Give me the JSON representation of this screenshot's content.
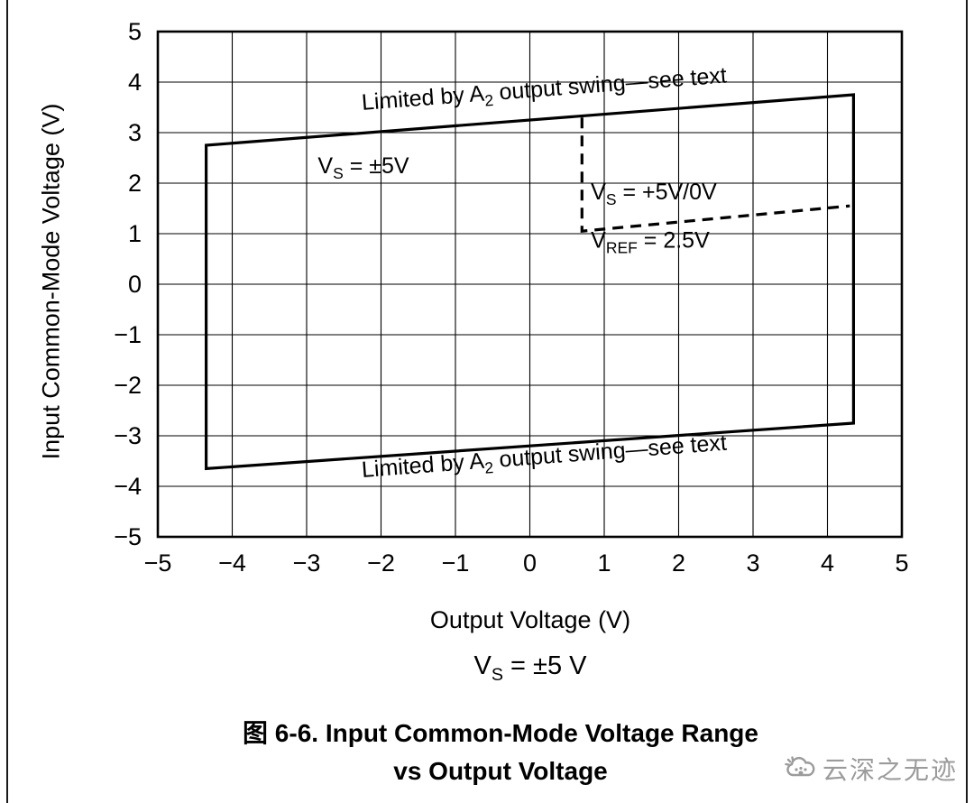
{
  "figure": {
    "caption_line1": "图 6-6. Input Common-Mode Voltage Range",
    "caption_line2": "vs Output Voltage",
    "condition": "V_{S} = ±5 V",
    "watermark": "云深之无迹"
  },
  "chart_data": {
    "type": "line",
    "title": "",
    "xlabel": "Output Voltage (V)",
    "ylabel": "Input Common-Mode Voltage (V)",
    "xlim": [
      -5,
      5
    ],
    "ylim": [
      -5,
      5
    ],
    "xticks": [
      -5,
      -4,
      -3,
      -2,
      -1,
      0,
      1,
      2,
      3,
      4,
      5
    ],
    "yticks": [
      -5,
      -4,
      -3,
      -2,
      -1,
      0,
      1,
      2,
      3,
      4,
      5
    ],
    "grid": true,
    "legend": "none",
    "series": [
      {
        "name": "input-cm-range-vs-pm5v",
        "line": "solid",
        "closed": true,
        "stroke_width": 3.2,
        "points": [
          [
            -4.35,
            2.75
          ],
          [
            4.35,
            3.75
          ],
          [
            4.35,
            -2.75
          ],
          [
            -4.35,
            -3.65
          ]
        ]
      },
      {
        "name": "boundary-vs-plus5v-0v-vref-2p5v",
        "line": "dashed",
        "closed": false,
        "stroke_width": 3.2,
        "points": [
          [
            0.7,
            3.3
          ],
          [
            0.7,
            1.05
          ],
          [
            4.3,
            1.55
          ]
        ]
      }
    ],
    "annotations": [
      {
        "text": "Limited by A_{2} output swing—see text",
        "x": 0.2,
        "y": 3.72,
        "rotate": -4.3,
        "anchor": "middle",
        "size": 25
      },
      {
        "text": "V_{S} = ±5V",
        "x": -2.85,
        "y": 2.2,
        "rotate": 0,
        "anchor": "start",
        "size": 25
      },
      {
        "text": "V_{S} = +5V/0V",
        "x": 0.82,
        "y": 1.68,
        "rotate": 0,
        "anchor": "start",
        "size": 25
      },
      {
        "text": "V_{REF} = 2.5V",
        "x": 0.82,
        "y": 0.72,
        "rotate": 0,
        "anchor": "start",
        "size": 25
      },
      {
        "text": "Limited by A_{2} output swing—see text",
        "x": 0.2,
        "y": -3.55,
        "rotate": -4.3,
        "anchor": "middle",
        "size": 25
      }
    ]
  }
}
